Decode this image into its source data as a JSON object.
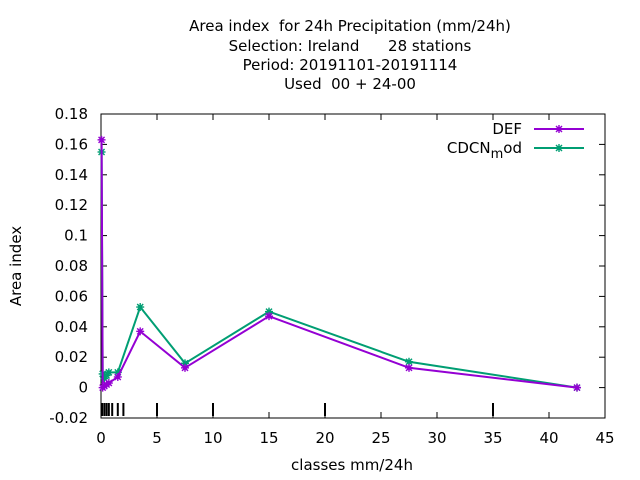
{
  "chart_data": {
    "type": "line",
    "title_lines": [
      "Area index  for 24h Precipitation (mm/24h)",
      "Selection: Ireland      28 stations",
      "Period: 20191101-20191114",
      "Used  00 + 24-00"
    ],
    "xlabel": "classes mm/24h",
    "ylabel": "Area index",
    "xlim": [
      0,
      45
    ],
    "ylim": [
      -0.02,
      0.18
    ],
    "x_ticks": [
      0,
      5,
      10,
      15,
      20,
      25,
      30,
      35,
      40,
      45
    ],
    "y_ticks": [
      -0.02,
      0,
      0.02,
      0.04,
      0.06,
      0.08,
      0.1,
      0.12,
      0.14,
      0.16,
      0.18
    ],
    "x_tick_labels": [
      "0",
      "5",
      "10",
      "15",
      "20",
      "25",
      "30",
      "35",
      "40",
      "45"
    ],
    "y_tick_labels": [
      "-0.02",
      "0",
      "0.02",
      "0.04",
      "0.06",
      "0.08",
      "0.1",
      "0.12",
      "0.14",
      "0.16",
      "0.18"
    ],
    "class_marks": [
      0.1,
      0.3,
      0.5,
      0.7,
      1,
      1.5,
      2,
      5,
      10,
      20,
      35
    ],
    "legend_position": "top-right",
    "grid": false,
    "series": [
      {
        "name": "DEF",
        "color": "#9400d3",
        "x": [
          0.05,
          0.15,
          0.3,
          0.5,
          0.7,
          1.5,
          3.5,
          7.5,
          15,
          27.5,
          42.5
        ],
        "y": [
          0.163,
          0.0,
          0.001,
          0.002,
          0.003,
          0.007,
          0.037,
          0.013,
          0.047,
          0.013,
          0.0
        ]
      },
      {
        "name": "CDCN_mod",
        "legend_text": "CDCN",
        "legend_sub": "m",
        "legend_tail": "od",
        "color": "#009e73",
        "x": [
          0.05,
          0.15,
          0.3,
          0.5,
          0.7,
          1.5,
          3.5,
          7.5,
          15,
          27.5,
          42.5
        ],
        "y": [
          0.155,
          0.009,
          0.006,
          0.008,
          0.01,
          0.01,
          0.053,
          0.016,
          0.05,
          0.017,
          0.0
        ]
      }
    ]
  }
}
